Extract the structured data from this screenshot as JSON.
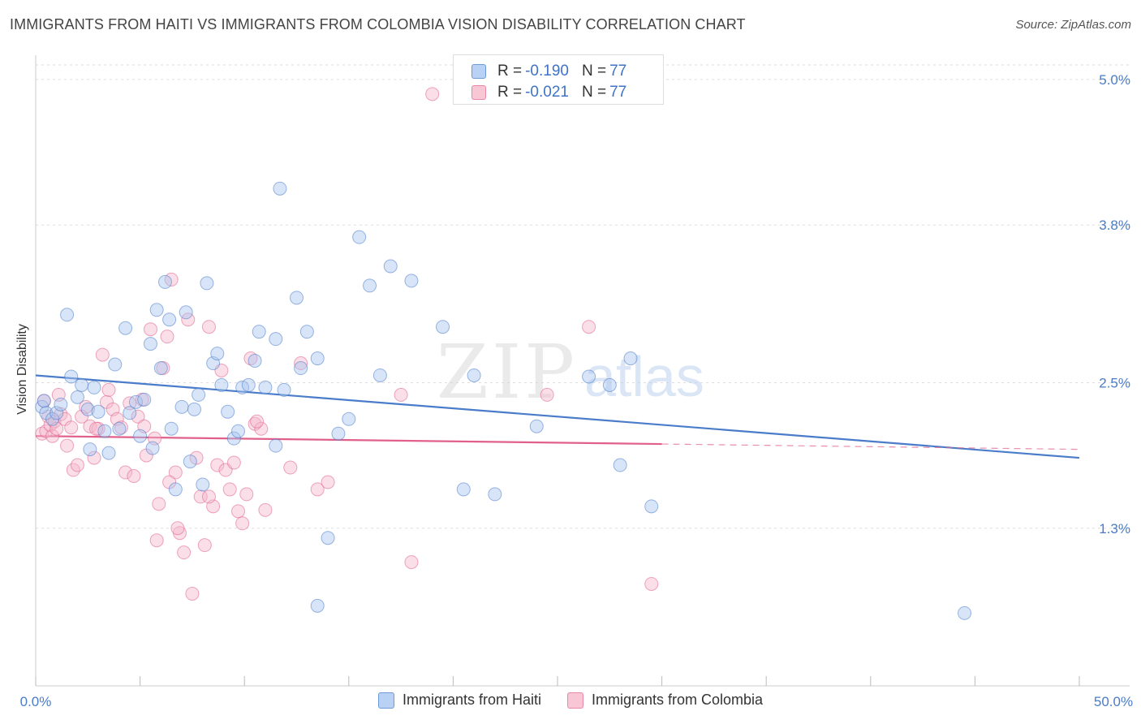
{
  "chart_data": {
    "type": "scatter",
    "title": "IMMIGRANTS FROM HAITI VS IMMIGRANTS FROM COLOMBIA VISION DISABILITY CORRELATION CHART",
    "source": "Source: ZipAtlas.com",
    "xlabel": "",
    "ylabel": "Vision Disability",
    "xlim": [
      0,
      50
    ],
    "ylim": [
      0,
      5.2
    ],
    "x_tick_labels": [
      "0.0%",
      "50.0%"
    ],
    "y_ticks": [
      {
        "value": 1.3,
        "label": "1.3%"
      },
      {
        "value": 2.5,
        "label": "2.5%"
      },
      {
        "value": 3.8,
        "label": "3.8%"
      },
      {
        "value": 5.0,
        "label": "5.0%"
      }
    ],
    "watermark": {
      "zip": "ZIP",
      "atlas": "atlas"
    },
    "legend": {
      "rows": [
        {
          "r_label": "R =",
          "r_value": "-0.190",
          "n_label": "N =",
          "n_value": "77"
        },
        {
          "r_label": "R =",
          "r_value": "-0.021",
          "n_label": "N =",
          "n_value": "77"
        }
      ]
    },
    "series": [
      {
        "name": "Immigrants from Haiti",
        "color": "#4a7cc9",
        "fill": "#a9c6f0",
        "trend": {
          "x": [
            0,
            50
          ],
          "y": [
            2.56,
            1.88
          ],
          "dashed_from": null
        },
        "points": [
          [
            0.3,
            2.3
          ],
          [
            0.4,
            2.35
          ],
          [
            0.5,
            2.25
          ],
          [
            0.8,
            2.2
          ],
          [
            1.0,
            2.25
          ],
          [
            1.2,
            2.32
          ],
          [
            1.5,
            3.06
          ],
          [
            1.7,
            2.55
          ],
          [
            2.0,
            2.38
          ],
          [
            2.2,
            2.48
          ],
          [
            2.5,
            2.28
          ],
          [
            2.6,
            1.95
          ],
          [
            2.8,
            2.46
          ],
          [
            3.0,
            2.26
          ],
          [
            3.3,
            2.1
          ],
          [
            3.5,
            1.92
          ],
          [
            3.8,
            2.65
          ],
          [
            4.0,
            2.12
          ],
          [
            4.3,
            2.95
          ],
          [
            4.5,
            2.25
          ],
          [
            4.8,
            2.34
          ],
          [
            5.0,
            2.06
          ],
          [
            5.2,
            2.36
          ],
          [
            5.5,
            2.82
          ],
          [
            5.6,
            1.96
          ],
          [
            5.8,
            3.1
          ],
          [
            6.0,
            2.62
          ],
          [
            6.2,
            3.33
          ],
          [
            6.4,
            3.02
          ],
          [
            6.5,
            2.12
          ],
          [
            6.7,
            1.62
          ],
          [
            7.0,
            2.3
          ],
          [
            7.2,
            3.08
          ],
          [
            7.4,
            1.85
          ],
          [
            7.6,
            2.28
          ],
          [
            7.8,
            2.4
          ],
          [
            8.0,
            1.66
          ],
          [
            8.2,
            3.32
          ],
          [
            8.5,
            2.66
          ],
          [
            8.7,
            2.74
          ],
          [
            8.9,
            2.48
          ],
          [
            9.2,
            2.26
          ],
          [
            9.5,
            2.04
          ],
          [
            9.7,
            2.1
          ],
          [
            9.9,
            2.46
          ],
          [
            10.2,
            2.48
          ],
          [
            10.5,
            2.68
          ],
          [
            10.7,
            2.92
          ],
          [
            11.0,
            2.46
          ],
          [
            11.5,
            2.86
          ],
          [
            11.7,
            4.1
          ],
          [
            11.9,
            2.44
          ],
          [
            12.5,
            3.2
          ],
          [
            12.7,
            2.62
          ],
          [
            13.0,
            2.92
          ],
          [
            13.5,
            2.7
          ],
          [
            14.0,
            1.22
          ],
          [
            14.5,
            2.08
          ],
          [
            15.0,
            2.2
          ],
          [
            15.5,
            3.7
          ],
          [
            16.0,
            3.3
          ],
          [
            16.5,
            2.56
          ],
          [
            17.0,
            3.46
          ],
          [
            18.0,
            3.34
          ],
          [
            19.5,
            2.96
          ],
          [
            20.5,
            1.62
          ],
          [
            21.0,
            2.56
          ],
          [
            22.0,
            1.58
          ],
          [
            24.0,
            2.14
          ],
          [
            26.5,
            2.55
          ],
          [
            27.5,
            2.48
          ],
          [
            28.0,
            1.82
          ],
          [
            28.5,
            2.7
          ],
          [
            29.5,
            1.48
          ],
          [
            13.5,
            0.66
          ],
          [
            11.5,
            1.98
          ],
          [
            44.5,
            0.6
          ]
        ]
      },
      {
        "name": "Immigrants from Colombia",
        "color": "#e0608a",
        "fill": "#f5b8cb",
        "trend": {
          "x": [
            0,
            50
          ],
          "y": [
            2.06,
            1.95
          ],
          "dashed_from": 30
        },
        "points": [
          [
            0.3,
            2.08
          ],
          [
            0.4,
            2.35
          ],
          [
            0.5,
            2.1
          ],
          [
            0.6,
            2.22
          ],
          [
            0.7,
            2.15
          ],
          [
            0.8,
            2.06
          ],
          [
            0.9,
            2.18
          ],
          [
            1.0,
            2.12
          ],
          [
            1.2,
            2.24
          ],
          [
            1.4,
            2.2
          ],
          [
            1.5,
            1.98
          ],
          [
            1.7,
            2.13
          ],
          [
            1.8,
            1.78
          ],
          [
            2.0,
            1.82
          ],
          [
            2.2,
            2.22
          ],
          [
            2.4,
            2.3
          ],
          [
            2.6,
            2.14
          ],
          [
            2.8,
            1.88
          ],
          [
            3.0,
            2.12
          ],
          [
            3.2,
            2.73
          ],
          [
            3.4,
            2.34
          ],
          [
            3.5,
            2.44
          ],
          [
            3.7,
            2.28
          ],
          [
            3.9,
            2.2
          ],
          [
            4.1,
            2.13
          ],
          [
            4.3,
            1.76
          ],
          [
            4.5,
            2.33
          ],
          [
            4.7,
            1.73
          ],
          [
            4.9,
            2.22
          ],
          [
            5.1,
            2.36
          ],
          [
            5.3,
            1.9
          ],
          [
            5.5,
            2.94
          ],
          [
            5.7,
            2.04
          ],
          [
            5.9,
            1.5
          ],
          [
            6.1,
            2.62
          ],
          [
            6.3,
            2.88
          ],
          [
            6.5,
            3.35
          ],
          [
            6.7,
            1.76
          ],
          [
            6.9,
            1.26
          ],
          [
            7.1,
            1.1
          ],
          [
            7.3,
            3.02
          ],
          [
            7.5,
            0.76
          ],
          [
            7.7,
            1.88
          ],
          [
            7.9,
            1.56
          ],
          [
            8.1,
            1.16
          ],
          [
            8.3,
            2.96
          ],
          [
            8.5,
            1.48
          ],
          [
            8.7,
            1.82
          ],
          [
            8.9,
            2.6
          ],
          [
            9.1,
            1.78
          ],
          [
            9.3,
            1.62
          ],
          [
            9.5,
            1.84
          ],
          [
            9.7,
            1.44
          ],
          [
            9.9,
            1.34
          ],
          [
            10.1,
            1.58
          ],
          [
            10.3,
            2.7
          ],
          [
            10.5,
            2.16
          ],
          [
            10.8,
            2.12
          ],
          [
            11.0,
            1.45
          ],
          [
            12.2,
            1.8
          ],
          [
            12.7,
            2.66
          ],
          [
            13.5,
            1.62
          ],
          [
            14.0,
            1.68
          ],
          [
            17.5,
            2.4
          ],
          [
            18.0,
            1.02
          ],
          [
            19.0,
            4.88
          ],
          [
            24.5,
            2.4
          ],
          [
            26.5,
            2.96
          ],
          [
            29.5,
            0.84
          ],
          [
            10.6,
            2.18
          ],
          [
            5.8,
            1.2
          ],
          [
            6.8,
            1.3
          ],
          [
            8.3,
            1.56
          ],
          [
            5.2,
            2.14
          ],
          [
            6.4,
            1.68
          ],
          [
            2.9,
            2.12
          ],
          [
            1.1,
            2.4
          ]
        ]
      }
    ]
  }
}
